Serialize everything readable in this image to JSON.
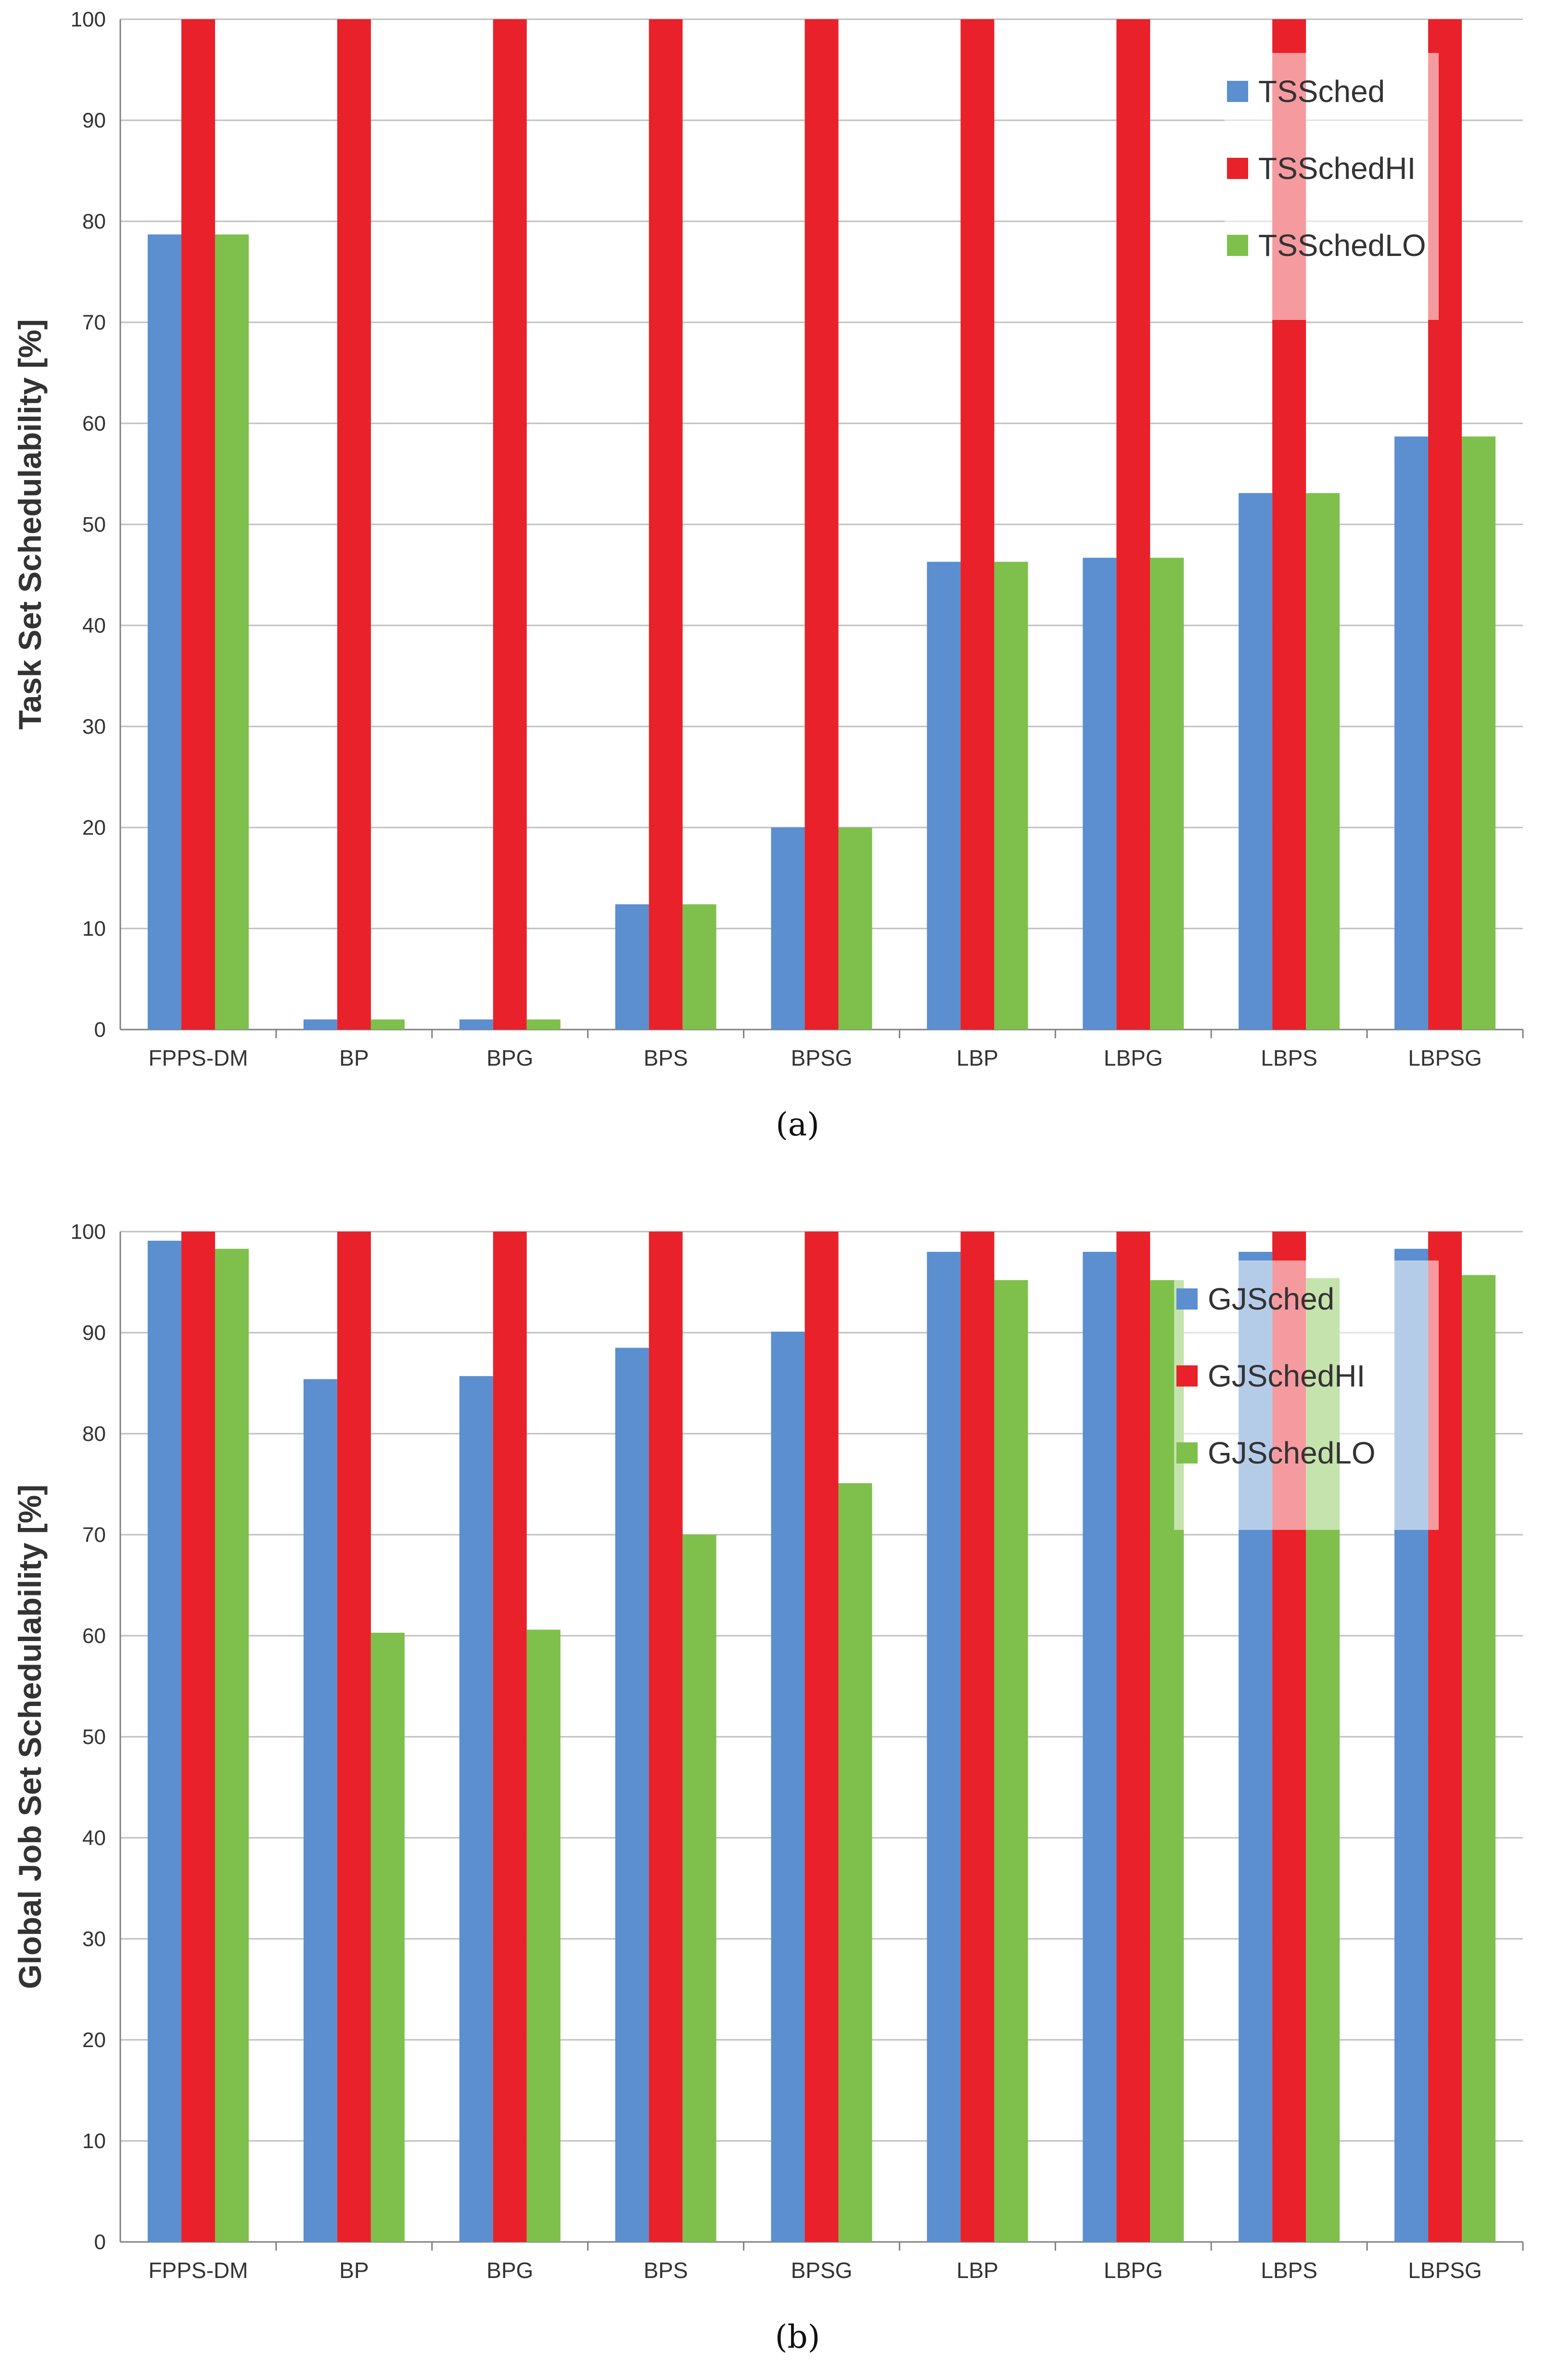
{
  "colors": {
    "series": [
      "#5b8fcf",
      "#e8212a",
      "#7ec04b"
    ],
    "grid": "#bfbfbf",
    "axis": "#808080",
    "text": "#333333"
  },
  "chart_data": [
    {
      "type": "bar",
      "caption": "(a)",
      "title": "",
      "xlabel": "",
      "ylabel": "Task Set Schedulability  [%]",
      "ylim": [
        0,
        100
      ],
      "yticks": [
        0,
        10,
        20,
        30,
        40,
        50,
        60,
        70,
        80,
        90,
        100
      ],
      "grid": true,
      "legend_position": "top-right",
      "categories": [
        "FPPS-DM",
        "BP",
        "BPG",
        "BPS",
        "BPSG",
        "LBP",
        "LBPG",
        "LBPS",
        "LBPSG"
      ],
      "series": [
        {
          "name": "TSSched",
          "values": [
            78.7,
            1.0,
            1.0,
            12.4,
            20.0,
            46.3,
            46.7,
            53.1,
            58.7
          ]
        },
        {
          "name": "TSSchedHI",
          "values": [
            100,
            100,
            100,
            100,
            100,
            100,
            100,
            100,
            100
          ]
        },
        {
          "name": "TSSchedLO",
          "values": [
            78.7,
            1.0,
            1.0,
            12.4,
            20.0,
            46.3,
            46.7,
            53.1,
            58.7
          ]
        }
      ]
    },
    {
      "type": "bar",
      "caption": "(b)",
      "title": "",
      "xlabel": "",
      "ylabel": "Global Job Set Schedulability  [%]",
      "ylim": [
        0,
        100
      ],
      "yticks": [
        0,
        10,
        20,
        30,
        40,
        50,
        60,
        70,
        80,
        90,
        100
      ],
      "grid": true,
      "legend_position": "top-right",
      "categories": [
        "FPPS-DM",
        "BP",
        "BPG",
        "BPS",
        "BPSG",
        "LBP",
        "LBPG",
        "LBPS",
        "LBPSG"
      ],
      "series": [
        {
          "name": "GJSched",
          "values": [
            99.1,
            85.4,
            85.7,
            88.5,
            90.1,
            98.0,
            98.0,
            98.0,
            98.3
          ]
        },
        {
          "name": "GJSchedHI",
          "values": [
            100,
            100,
            100,
            100,
            100,
            100,
            100,
            100,
            100
          ]
        },
        {
          "name": "GJSchedLO",
          "values": [
            98.3,
            60.3,
            60.6,
            70.0,
            75.1,
            95.2,
            95.2,
            95.4,
            95.7
          ]
        }
      ]
    }
  ]
}
